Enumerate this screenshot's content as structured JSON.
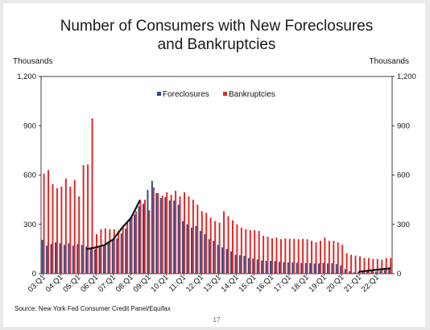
{
  "slide": {
    "page_number": "17",
    "source": "Source: New York Fed Consumer Credit Panel/Equifax"
  },
  "chart_data": {
    "type": "bar",
    "title_lines": [
      "Number of Consumers with New Foreclosures",
      "and Bankruptcies"
    ],
    "left_axis_label": "Thousands",
    "right_axis_label": "Thousands",
    "ylim": [
      0,
      1200
    ],
    "yticks": [
      "0",
      "300",
      "600",
      "900",
      "1,200"
    ],
    "ytick_values": [
      0,
      300,
      600,
      900,
      1200
    ],
    "legend_position": "top-center",
    "categories": [
      "03:Q1",
      "03:Q2",
      "03:Q3",
      "03:Q4",
      "04:Q1",
      "04:Q2",
      "04:Q3",
      "04:Q4",
      "05:Q1",
      "05:Q2",
      "05:Q3",
      "05:Q4",
      "06:Q1",
      "06:Q2",
      "06:Q3",
      "06:Q4",
      "07:Q1",
      "07:Q2",
      "07:Q3",
      "07:Q4",
      "08:Q1",
      "08:Q2",
      "08:Q3",
      "08:Q4",
      "09:Q1",
      "09:Q2",
      "09:Q3",
      "09:Q4",
      "10:Q1",
      "10:Q2",
      "10:Q3",
      "10:Q4",
      "11:Q1",
      "11:Q2",
      "11:Q3",
      "11:Q4",
      "12:Q1",
      "12:Q2",
      "12:Q3",
      "12:Q4",
      "13:Q1",
      "13:Q2",
      "13:Q3",
      "13:Q4",
      "14:Q1",
      "14:Q2",
      "14:Q3",
      "14:Q4",
      "15:Q1",
      "15:Q2",
      "15:Q3",
      "15:Q4",
      "16:Q1",
      "16:Q2",
      "16:Q3",
      "16:Q4",
      "17:Q1",
      "17:Q2",
      "17:Q3",
      "17:Q4",
      "18:Q1",
      "18:Q2",
      "18:Q3",
      "18:Q4",
      "19:Q1",
      "19:Q2",
      "19:Q3",
      "19:Q4",
      "20:Q1",
      "20:Q2",
      "20:Q3",
      "20:Q4",
      "21:Q1",
      "21:Q2",
      "21:Q3",
      "21:Q4",
      "22:Q1",
      "22:Q2",
      "22:Q3",
      "22:Q4"
    ],
    "xtick_labels": [
      "03:Q1",
      "04:Q1",
      "05:Q1",
      "06:Q1",
      "07:Q1",
      "08:Q1",
      "09:Q1",
      "10:Q1",
      "11:Q1",
      "12:Q1",
      "13:Q1",
      "14:Q1",
      "15:Q1",
      "16:Q1",
      "17:Q1",
      "18:Q1",
      "19:Q1",
      "20:Q1",
      "21:Q1",
      "22:Q1"
    ],
    "series": [
      {
        "name": "Foreclosures",
        "color": "#2c4b8a",
        "values": [
          205,
          170,
          180,
          190,
          185,
          175,
          185,
          170,
          180,
          175,
          165,
          150,
          150,
          160,
          170,
          185,
          205,
          215,
          245,
          275,
          330,
          360,
          410,
          425,
          510,
          565,
          490,
          460,
          465,
          445,
          445,
          420,
          320,
          300,
          280,
          290,
          260,
          240,
          210,
          200,
          175,
          160,
          150,
          135,
          115,
          112,
          108,
          95,
          92,
          86,
          80,
          78,
          78,
          76,
          72,
          70,
          68,
          68,
          66,
          65,
          65,
          64,
          62,
          62,
          65,
          62,
          63,
          58,
          50,
          28,
          15,
          8,
          10,
          12,
          14,
          16,
          12,
          18,
          22,
          28
        ]
      },
      {
        "name": "Bankruptcies",
        "color": "#e32626",
        "values": [
          610,
          630,
          545,
          520,
          530,
          580,
          530,
          570,
          470,
          660,
          665,
          945,
          240,
          270,
          275,
          270,
          270,
          260,
          280,
          310,
          355,
          380,
          440,
          450,
          385,
          525,
          490,
          475,
          495,
          480,
          505,
          470,
          495,
          470,
          450,
          420,
          380,
          370,
          340,
          320,
          310,
          380,
          350,
          325,
          300,
          280,
          270,
          265,
          265,
          260,
          230,
          225,
          215,
          220,
          210,
          215,
          212,
          212,
          210,
          212,
          210,
          200,
          190,
          200,
          220,
          200,
          200,
          190,
          175,
          125,
          115,
          110,
          105,
          95,
          95,
          90,
          90,
          85,
          95,
          95
        ]
      }
    ],
    "trend_lines": [
      {
        "color": "#111111",
        "points": [
          [
            "05:Q3",
            150
          ],
          [
            "06:Q1",
            160
          ],
          [
            "06:Q3",
            175
          ],
          [
            "07:Q1",
            210
          ],
          [
            "07:Q3",
            280
          ],
          [
            "08:Q1",
            340
          ],
          [
            "08:Q3",
            445
          ]
        ]
      },
      {
        "color": "#111111",
        "points": [
          [
            "21:Q1",
            12
          ],
          [
            "21:Q3",
            18
          ],
          [
            "22:Q1",
            24
          ],
          [
            "22:Q4",
            32
          ]
        ]
      }
    ]
  }
}
